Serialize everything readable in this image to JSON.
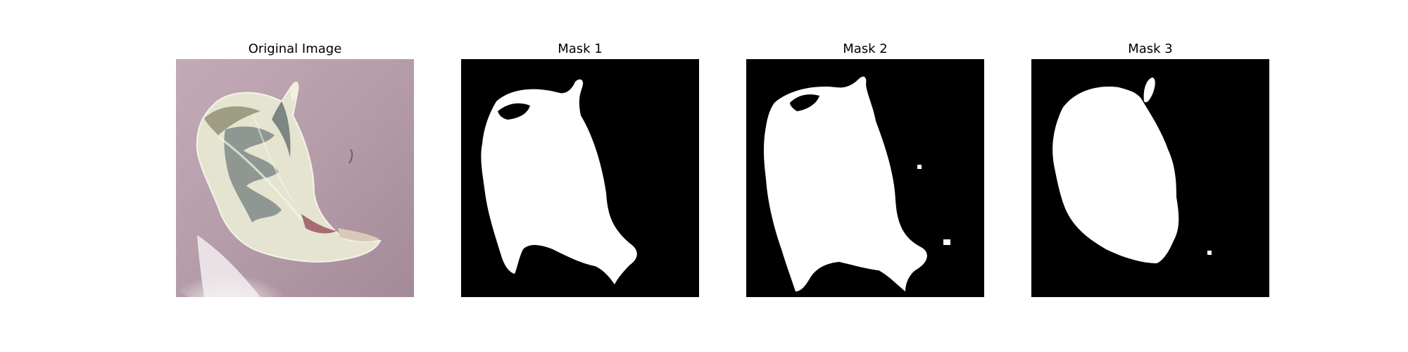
{
  "figure": {
    "panels": [
      {
        "title": "Original Image",
        "kind": "photo"
      },
      {
        "title": "Mask 1",
        "kind": "mask"
      },
      {
        "title": "Mask 2",
        "kind": "mask"
      },
      {
        "title": "Mask 3",
        "kind": "mask"
      }
    ],
    "colors": {
      "mask_foreground": "#ffffff",
      "mask_background": "#000000",
      "photo_background": "#b8a0ac",
      "leaf_light": "#e6e6d2",
      "leaf_dark": "#7d8882",
      "leaf_tip": "#a86a72"
    }
  }
}
